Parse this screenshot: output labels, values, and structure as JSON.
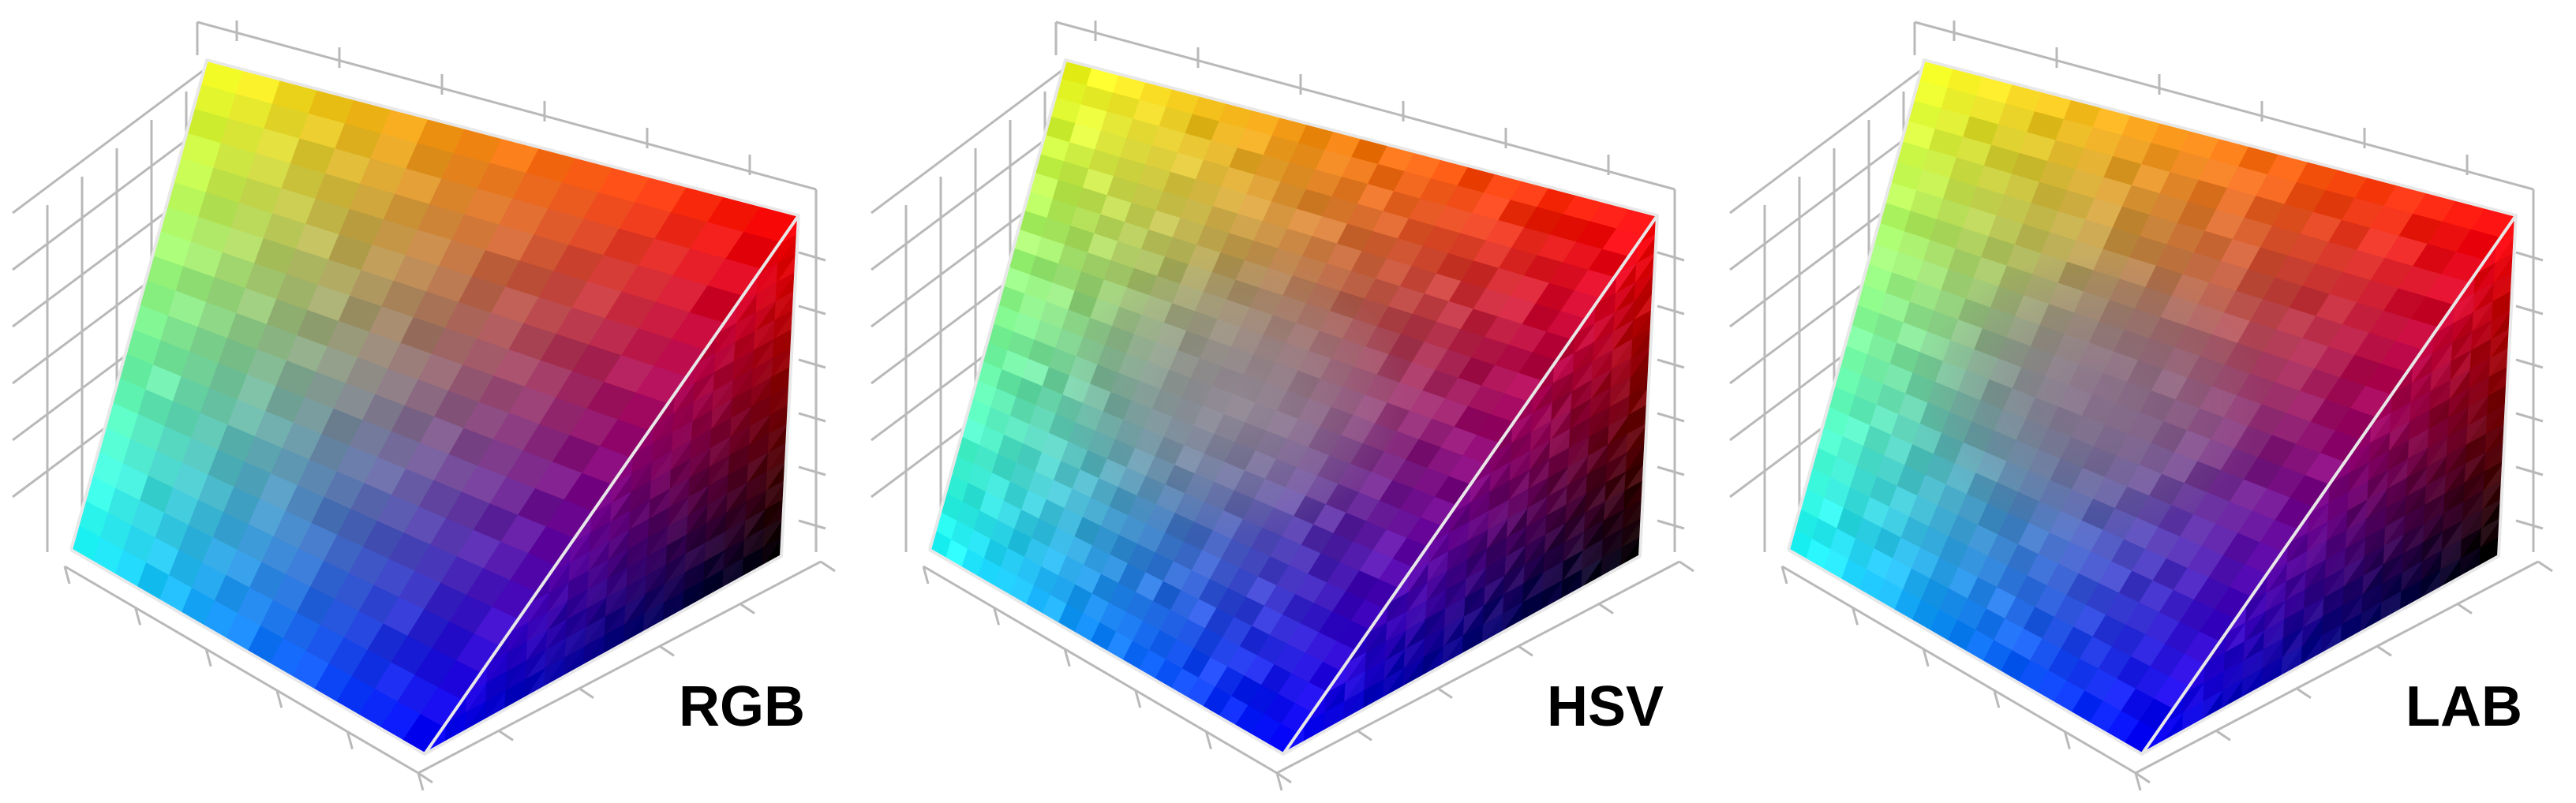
{
  "panels": [
    {
      "label": "RGB",
      "variant": "rgb"
    },
    {
      "label": "HSV",
      "variant": "hsv"
    },
    {
      "label": "LAB",
      "variant": "lab"
    }
  ],
  "colors": {
    "background": "#ffffff",
    "grid": "#b9b9b9",
    "edge_highlight": "#e8e8e8",
    "label": "#000000",
    "corner_yellow": "#f4ff1e",
    "corner_red": "#ff0000",
    "corner_cyan": "#1effff",
    "corner_blue": "#0000ff",
    "corner_black": "#000000"
  }
}
